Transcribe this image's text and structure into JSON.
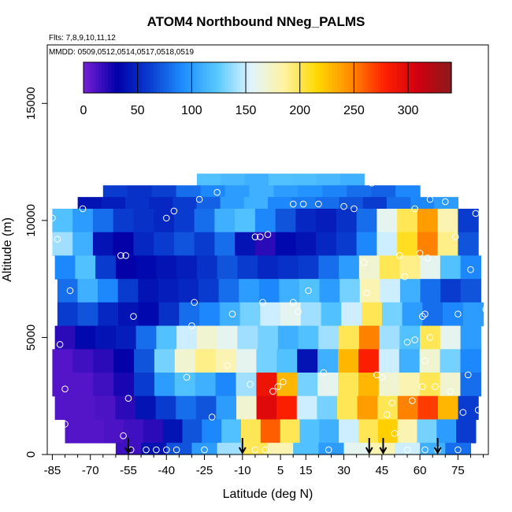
{
  "chart_data": {
    "type": "heatmap",
    "title": "ATOM4 Northbound NNeg_PALMS",
    "flights_label": "Flts: 7,8,9,10,11,12",
    "dates_label": "MMDD: 0509,0512,0514,0517,0518,0519",
    "xlabel": "Latitude (deg N)",
    "ylabel": "Altitude (m)",
    "xlim": [
      -87,
      87
    ],
    "ylim": [
      0,
      17500
    ],
    "x_ticks": [
      -85,
      -70,
      -55,
      -40,
      -25,
      -10,
      5,
      15,
      30,
      45,
      60,
      75
    ],
    "y_ticks": [
      0,
      5000,
      10000,
      15000
    ],
    "colorbar": {
      "min": 0,
      "max": 340,
      "ticks": [
        0,
        50,
        100,
        150,
        200,
        250,
        300
      ],
      "colors": [
        "#7a1fd6",
        "#0000a8",
        "#0a3fd0",
        "#1f8fff",
        "#59c8ff",
        "#e0f4ff",
        "#fff3a0",
        "#ffd800",
        "#ff8a00",
        "#ff2000",
        "#d00010",
        "#8a1a1a"
      ]
    },
    "profile_markers_lat": [
      -55,
      -10,
      40,
      45.5,
      67
    ],
    "grid_rows": [
      {
        "alt_top": 12000,
        "alt_bot": 11500,
        "lat_from": -28,
        "lat_to": 38,
        "values": [
          120,
          115,
          110,
          120,
          118,
          115,
          110
        ]
      },
      {
        "alt_top": 11500,
        "alt_bot": 11000,
        "lat_from": -65,
        "lat_to": 60,
        "values": [
          60,
          55,
          62,
          80,
          90,
          100,
          110,
          100,
          95,
          88,
          80,
          75,
          90
        ]
      },
      {
        "alt_top": 11000,
        "alt_bot": 10500,
        "lat_from": -75,
        "lat_to": 75,
        "values": [
          40,
          45,
          55,
          50,
          60,
          75,
          100,
          110,
          90,
          85,
          80,
          70,
          60,
          80,
          90,
          100
        ]
      },
      {
        "alt_top": 10500,
        "alt_bot": 9500,
        "lat_from": -85,
        "lat_to": 83,
        "values": [
          120,
          100,
          80,
          60,
          55,
          50,
          60,
          80,
          110,
          120,
          90,
          70,
          50,
          45,
          55,
          80,
          160,
          200,
          240,
          180,
          60
        ]
      },
      {
        "alt_top": 9500,
        "alt_bot": 8500,
        "lat_from": -85,
        "lat_to": 83,
        "values": [
          140,
          110,
          40,
          30,
          50,
          60,
          70,
          60,
          80,
          40,
          20,
          35,
          40,
          50,
          60,
          90,
          150,
          210,
          250,
          190,
          70
        ]
      },
      {
        "alt_top": 8500,
        "alt_bot": 7500,
        "lat_from": -84,
        "lat_to": 84,
        "values": [
          90,
          120,
          60,
          30,
          35,
          40,
          45,
          55,
          70,
          60,
          50,
          55,
          60,
          80,
          100,
          170,
          200,
          190,
          160,
          120,
          90
        ]
      },
      {
        "alt_top": 7500,
        "alt_bot": 6500,
        "lat_from": -83,
        "lat_to": 84,
        "values": [
          80,
          110,
          90,
          60,
          40,
          45,
          50,
          60,
          80,
          100,
          90,
          110,
          120,
          100,
          130,
          180,
          150,
          110,
          80,
          60,
          70
        ]
      },
      {
        "alt_top": 6500,
        "alt_bot": 5500,
        "lat_from": -83,
        "lat_to": 85,
        "values": [
          60,
          70,
          50,
          40,
          35,
          55,
          80,
          90,
          110,
          130,
          150,
          160,
          140,
          120,
          150,
          200,
          130,
          100,
          80,
          90,
          100
        ]
      },
      {
        "alt_top": 5500,
        "alt_bot": 4500,
        "lat_from": -84,
        "lat_to": 84,
        "values": [
          20,
          35,
          40,
          45,
          80,
          120,
          150,
          170,
          160,
          140,
          130,
          110,
          120,
          140,
          200,
          250,
          140,
          120,
          200,
          160,
          100
        ]
      },
      {
        "alt_top": 4500,
        "alt_bot": 3500,
        "lat_from": -85,
        "lat_to": 84,
        "values": [
          10,
          15,
          20,
          30,
          70,
          130,
          170,
          190,
          180,
          160,
          130,
          120,
          40,
          110,
          230,
          280,
          150,
          110,
          170,
          130,
          90
        ]
      },
      {
        "alt_top": 3500,
        "alt_bot": 2500,
        "lat_from": -85,
        "lat_to": 84,
        "values": [
          10,
          10,
          15,
          25,
          60,
          100,
          120,
          110,
          90,
          140,
          290,
          230,
          130,
          160,
          200,
          230,
          170,
          180,
          200,
          170,
          80
        ]
      },
      {
        "alt_top": 2500,
        "alt_bot": 1500,
        "lat_from": -84,
        "lat_to": 83,
        "values": [
          10,
          10,
          12,
          20,
          40,
          60,
          80,
          70,
          100,
          170,
          300,
          280,
          150,
          130,
          200,
          240,
          200,
          250,
          270,
          230,
          60
        ]
      },
      {
        "alt_top": 1500,
        "alt_bot": 500,
        "lat_from": -80,
        "lat_to": 82,
        "values": [
          10,
          10,
          12,
          15,
          20,
          40,
          70,
          90,
          120,
          200,
          260,
          200,
          120,
          110,
          150,
          200,
          220,
          180,
          130,
          100,
          60
        ]
      },
      {
        "alt_top": 500,
        "alt_bot": 0,
        "lat_from": -60,
        "lat_to": 80,
        "values": [
          15,
          40,
          70,
          100,
          140,
          200,
          180,
          120,
          100,
          160,
          180,
          150,
          110,
          80
        ]
      }
    ],
    "sample_points": [
      [
        -85,
        10100
      ],
      [
        -83,
        9200
      ],
      [
        -82,
        4700
      ],
      [
        -80,
        2800
      ],
      [
        -80,
        1300
      ],
      [
        -78,
        7000
      ],
      [
        -73,
        10500
      ],
      [
        -58,
        8500
      ],
      [
        -56,
        8500
      ],
      [
        -53,
        5900
      ],
      [
        -55,
        2400
      ],
      [
        -57,
        800
      ],
      [
        -54,
        200
      ],
      [
        -48,
        200
      ],
      [
        -44,
        200
      ],
      [
        -40,
        200
      ],
      [
        -36,
        200
      ],
      [
        -40,
        10100
      ],
      [
        -37,
        10400
      ],
      [
        -32,
        3300
      ],
      [
        -30,
        5500
      ],
      [
        -29,
        6500
      ],
      [
        -27,
        10900
      ],
      [
        -25,
        200
      ],
      [
        -22,
        1600
      ],
      [
        -20,
        11200
      ],
      [
        -16,
        3800
      ],
      [
        -14,
        6000
      ],
      [
        -5,
        9300
      ],
      [
        -3,
        9300
      ],
      [
        0,
        9400
      ],
      [
        -2,
        6500
      ],
      [
        -7,
        3000
      ],
      [
        -5,
        200
      ],
      [
        -1,
        200
      ],
      [
        2,
        2700
      ],
      [
        4,
        2900
      ],
      [
        6,
        3100
      ],
      [
        10,
        6500
      ],
      [
        10,
        10700
      ],
      [
        12,
        6100
      ],
      [
        14,
        10700
      ],
      [
        16,
        7000
      ],
      [
        20,
        10700
      ],
      [
        22,
        3500
      ],
      [
        24,
        200
      ],
      [
        30,
        10600
      ],
      [
        34,
        10500
      ],
      [
        38,
        8200
      ],
      [
        39,
        6900
      ],
      [
        41,
        11600
      ],
      [
        43,
        3400
      ],
      [
        45,
        3300
      ],
      [
        47,
        1700
      ],
      [
        49,
        2200
      ],
      [
        50,
        900
      ],
      [
        52,
        8500
      ],
      [
        54,
        7600
      ],
      [
        55,
        4800
      ],
      [
        57,
        2300
      ],
      [
        58,
        10500
      ],
      [
        58,
        4900
      ],
      [
        60,
        8600
      ],
      [
        61,
        2900
      ],
      [
        61,
        5900
      ],
      [
        62,
        6000
      ],
      [
        62,
        4000
      ],
      [
        63,
        8400
      ],
      [
        64,
        10900
      ],
      [
        64,
        5000
      ],
      [
        66,
        2900
      ],
      [
        67,
        200
      ],
      [
        70,
        10800
      ],
      [
        72,
        2700
      ],
      [
        74,
        9300
      ],
      [
        75,
        6000
      ],
      [
        77,
        1800
      ],
      [
        79,
        3400
      ],
      [
        80,
        7900
      ],
      [
        82,
        10300
      ],
      [
        83,
        1900
      ],
      [
        84,
        200
      ],
      [
        86,
        6200
      ],
      [
        55,
        200
      ],
      [
        62,
        200
      ],
      [
        75,
        200
      ]
    ]
  }
}
